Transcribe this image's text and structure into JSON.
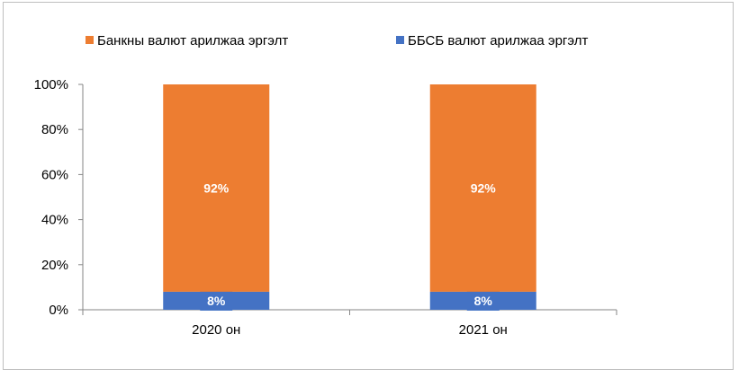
{
  "chart_data": {
    "type": "bar",
    "stacked": true,
    "percent": true,
    "categories": [
      "2020 он",
      "2021 он"
    ],
    "series": [
      {
        "name": "ББСБ валют арилжаа эргэлт",
        "values": [
          8,
          8
        ],
        "color": "#4472c4",
        "labels": [
          "8%",
          "8%"
        ]
      },
      {
        "name": "Банкны валют арилжаа эргэлт",
        "values": [
          92,
          92
        ],
        "color": "#ed7d31",
        "labels": [
          "92%",
          "92%"
        ]
      }
    ],
    "legend_order": [
      1,
      0
    ],
    "legend_position": "top",
    "ylim": [
      0,
      100
    ],
    "yticks": [
      0,
      20,
      40,
      60,
      80,
      100
    ],
    "ytick_labels": [
      "0%",
      "20%",
      "40%",
      "60%",
      "80%",
      "100%"
    ],
    "grid": false,
    "title": "",
    "xlabel": "",
    "ylabel": ""
  }
}
